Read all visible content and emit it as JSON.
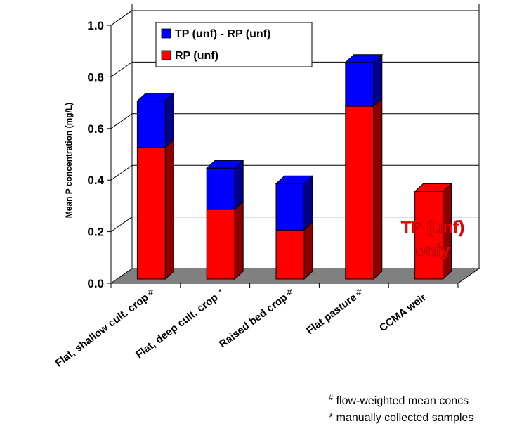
{
  "chart_data": {
    "type": "bar",
    "stacked": true,
    "three_d": true,
    "categories": [
      "Flat, shallow cult. crop",
      "Flat, deep cult. crop",
      "Raised bed crop",
      "Flat pasture",
      "CCMA weir"
    ],
    "category_marks": [
      "#",
      "*",
      "#",
      "#",
      ""
    ],
    "series": [
      {
        "name": "RP (unf)",
        "color": "#ff0000",
        "side_color": "#8b0000",
        "values": [
          0.51,
          0.27,
          0.19,
          0.67,
          0.34
        ]
      },
      {
        "name": "TP (unf) - RP (unf)",
        "color": "#0000ff",
        "side_color": "#00008b",
        "values": [
          0.18,
          0.16,
          0.18,
          0.17,
          0
        ]
      }
    ],
    "ylabel": "Mean P concentration (mg/L)",
    "xlabel": "",
    "ylim": [
      0,
      1.0
    ],
    "yticks": [
      "0.0",
      "0.2",
      "0.4",
      "0.6",
      "0.8",
      "1.0"
    ],
    "grid": true,
    "legend_position": "top-center",
    "legend": [
      "TP (unf) - RP (unf)",
      "RP (unf)"
    ],
    "annotation": {
      "lines": [
        "TP (unf)",
        "only"
      ],
      "category": "CCMA weir"
    },
    "footnotes": [
      {
        "symbol": "#",
        "text": " flow-weighted mean concs"
      },
      {
        "symbol": "*",
        "text": " manually collected samples"
      }
    ],
    "colors": {
      "floor": "#808080",
      "wall_line": "#000000"
    }
  }
}
